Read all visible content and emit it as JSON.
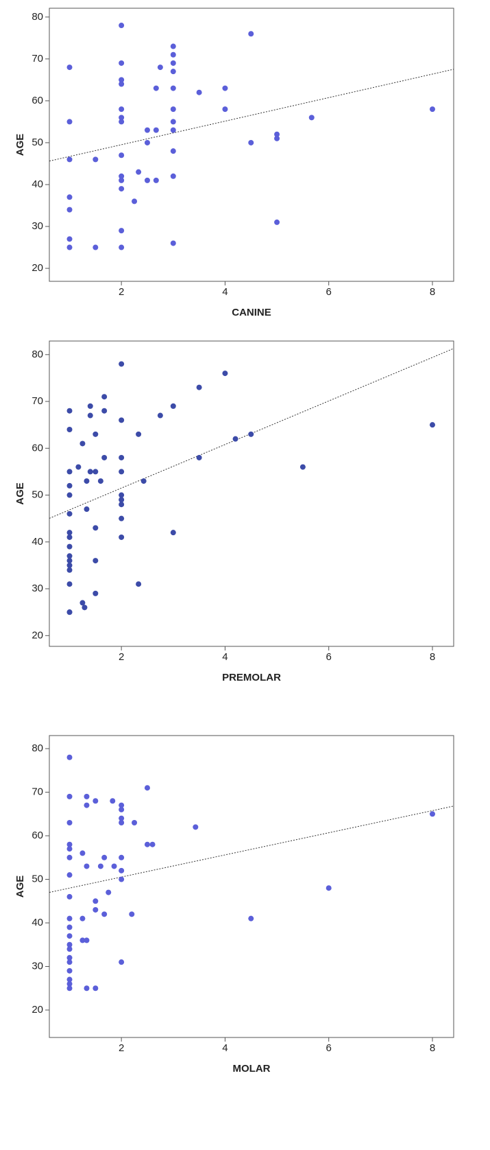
{
  "chart_data": [
    {
      "type": "scatter",
      "x_label": "CANINE",
      "y_label": "AGE",
      "color": "#5b5fd9",
      "xlim": [
        0.61,
        8.41
      ],
      "ylim": [
        16.9,
        82.1
      ],
      "xticks": [
        2,
        4,
        6,
        8
      ],
      "yticks": [
        20,
        30,
        40,
        50,
        60,
        70,
        80
      ],
      "fit": {
        "intercept": 43.9,
        "slope": 2.81
      },
      "x": [
        1,
        1,
        1,
        1,
        1,
        1,
        1,
        1.5,
        1.5,
        2,
        2,
        2,
        2,
        2,
        2,
        2,
        2,
        2,
        2,
        2,
        2,
        2,
        2.25,
        2.33,
        2.5,
        2.5,
        2.5,
        2.67,
        2.67,
        2.67,
        2.75,
        3,
        3,
        3,
        3,
        3,
        3,
        3,
        3,
        3,
        3,
        3,
        3.5,
        4,
        4,
        4.5,
        4.5,
        5,
        5,
        5,
        5.67,
        8
      ],
      "y": [
        68,
        55,
        46,
        37,
        34,
        27,
        25,
        46,
        25,
        78,
        69,
        65,
        64,
        58,
        56,
        55,
        47,
        42,
        41,
        39,
        29,
        25,
        36,
        43,
        53,
        50,
        41,
        63,
        53,
        41,
        68,
        73,
        71,
        69,
        67,
        63,
        58,
        55,
        53,
        48,
        42,
        26,
        62,
        63,
        58,
        76,
        50,
        52,
        51,
        31,
        56,
        58
      ]
    },
    {
      "type": "scatter",
      "x_label": "PREMOLAR",
      "y_label": "AGE",
      "color": "#3c4ba8",
      "xlim": [
        0.61,
        8.41
      ],
      "ylim": [
        17.7,
        82.9
      ],
      "xticks": [
        2,
        4,
        6,
        8
      ],
      "yticks": [
        20,
        30,
        40,
        50,
        60,
        70,
        80
      ],
      "fit": {
        "intercept": 42.2,
        "slope": 4.65
      },
      "x": [
        1,
        1,
        1,
        1,
        1,
        1,
        1,
        1,
        1,
        1,
        1,
        1,
        1,
        1,
        1,
        1,
        1.17,
        1.25,
        1.25,
        1.29,
        1.33,
        1.33,
        1.4,
        1.4,
        1.4,
        1.5,
        1.5,
        1.5,
        1.5,
        1.5,
        1.6,
        1.67,
        1.67,
        1.67,
        2,
        2,
        2,
        2,
        2,
        2,
        2,
        2,
        2,
        2.33,
        2.33,
        2.43,
        2.75,
        3,
        3,
        3.5,
        3.5,
        4,
        4.2,
        4.5,
        5.5,
        8
      ],
      "y": [
        68,
        64,
        55,
        52,
        50,
        46,
        42,
        41,
        39,
        37,
        36,
        35,
        34,
        31,
        25,
        25,
        56,
        61,
        27,
        26,
        53,
        47,
        69,
        67,
        55,
        63,
        55,
        43,
        36,
        29,
        53,
        71,
        68,
        58,
        78,
        66,
        58,
        55,
        50,
        49,
        48,
        45,
        41,
        63,
        31,
        53,
        67,
        69,
        42,
        73,
        58,
        76,
        62,
        63,
        56,
        65
      ]
    },
    {
      "type": "scatter",
      "x_label": "MOLAR",
      "y_label": "AGE",
      "color": "#5b5fd9",
      "xlim": [
        0.61,
        8.41
      ],
      "ylim": [
        13.7,
        83
      ],
      "xticks": [
        2,
        4,
        6,
        8
      ],
      "yticks": [
        20,
        30,
        40,
        50,
        60,
        70,
        80
      ],
      "fit": {
        "intercept": 45.45,
        "slope": 2.54
      },
      "x": [
        1,
        1,
        1,
        1,
        1,
        1,
        1,
        1,
        1,
        1,
        1,
        1,
        1,
        1,
        1,
        1,
        1,
        1,
        1,
        1.25,
        1.25,
        1.25,
        1.33,
        1.33,
        1.33,
        1.33,
        1.33,
        1.5,
        1.5,
        1.5,
        1.5,
        1.6,
        1.67,
        1.67,
        1.75,
        1.83,
        1.86,
        2,
        2,
        2,
        2,
        2,
        2,
        2,
        2,
        2.2,
        2.25,
        2.5,
        2.5,
        2.6,
        3.43,
        4.5,
        6,
        8
      ],
      "y": [
        78,
        69,
        63,
        58,
        57,
        55,
        51,
        46,
        41,
        39,
        37,
        35,
        34,
        32,
        31,
        29,
        27,
        26,
        25,
        56,
        41,
        36,
        69,
        67,
        53,
        36,
        25,
        68,
        45,
        43,
        25,
        53,
        55,
        42,
        47,
        68,
        53,
        67,
        66,
        64,
        63,
        55,
        52,
        50,
        31,
        42,
        63,
        71,
        58,
        58,
        62,
        41,
        48,
        65
      ]
    }
  ]
}
